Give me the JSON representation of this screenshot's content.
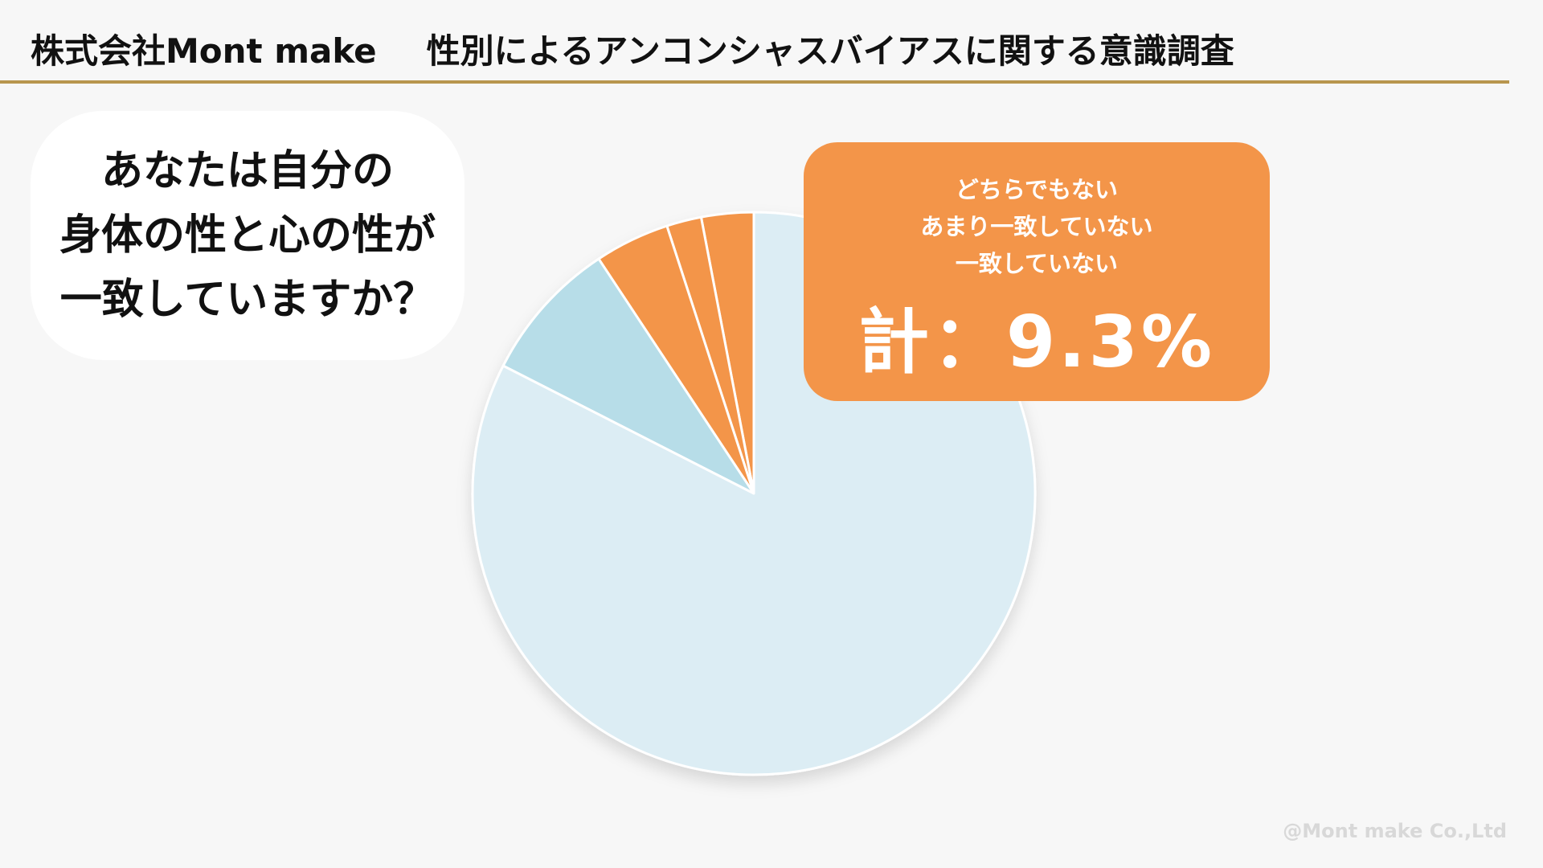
{
  "header": {
    "company": "株式会社Mont make",
    "survey_title": "性別によるアンコンシャスバイアスに関する意識調査"
  },
  "question": {
    "text": "あなたは自分の\n身体の性と心の性が\n一致していますか？"
  },
  "callout": {
    "labels": "どちらでもない\nあまり一致していない\n一致していない",
    "total": "計：9.3%"
  },
  "copyright": "@Mont make Co.,Ltd",
  "colors": {
    "background": "#f7f7f7",
    "header_rule": "#b8964e",
    "orange": "#f39549",
    "light_blue": "#dcedf4",
    "mid_blue": "#b7dde8"
  },
  "chart_data": {
    "type": "pie",
    "title": "",
    "start_angle_deg": 0,
    "direction": "counterclockwise",
    "slices": [
      {
        "value": 3.0,
        "color": "#f39549"
      },
      {
        "value": 2.0,
        "color": "#f39549"
      },
      {
        "value": 4.3,
        "color": "#f39549"
      },
      {
        "value": 8.2,
        "color": "#b7dde8"
      },
      {
        "value": 82.5,
        "color": "#dcedf4"
      }
    ]
  }
}
